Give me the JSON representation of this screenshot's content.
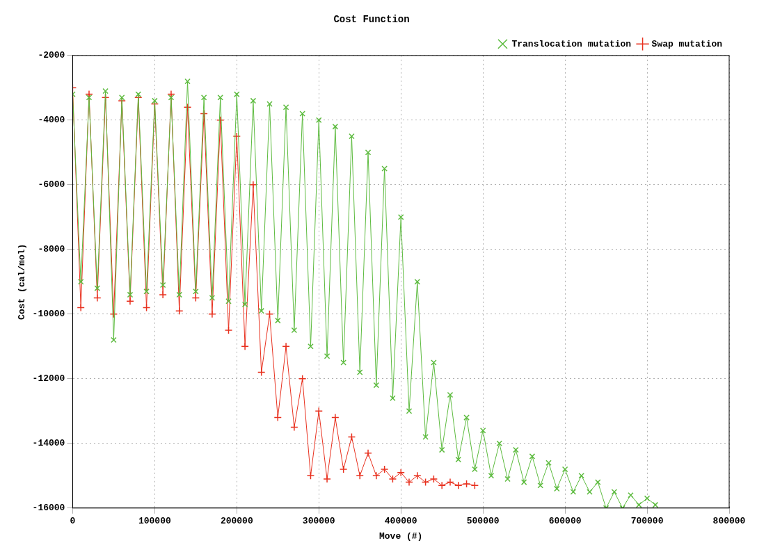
{
  "chart_data": {
    "type": "line",
    "title": "Cost Function",
    "x_label": "Move (#)",
    "y_label": "Cost (cal/mol)",
    "xlim": [
      0,
      800000
    ],
    "xticks": [
      0,
      100000,
      200000,
      300000,
      400000,
      500000,
      600000,
      700000,
      800000
    ],
    "ylim": [
      -16000,
      -2000
    ],
    "yticks": [
      -16000,
      -14000,
      -12000,
      -10000,
      -8000,
      -6000,
      -4000,
      -2000
    ],
    "grid": true,
    "legend": "top-right",
    "series": [
      {
        "name": "Swap mutation",
        "color": "#e8311f",
        "marker": "plus",
        "line_style": "solid",
        "x": [
          0,
          10000,
          20000,
          30000,
          40000,
          50000,
          60000,
          70000,
          80000,
          90000,
          100000,
          110000,
          120000,
          130000,
          140000,
          150000,
          160000,
          170000,
          180000,
          190000,
          200000,
          210000,
          220000,
          230000,
          240000,
          250000,
          260000,
          270000,
          280000,
          290000,
          300000,
          310000,
          320000,
          330000,
          340000,
          350000,
          360000,
          370000,
          380000,
          390000,
          400000,
          410000,
          420000,
          430000,
          440000,
          450000,
          460000,
          470000,
          480000,
          490000
        ],
        "values": [
          -3000,
          -9800,
          -3200,
          -9500,
          -3300,
          -10000,
          -3400,
          -9600,
          -3300,
          -9800,
          -3500,
          -9400,
          -3200,
          -9900,
          -3600,
          -9500,
          -3800,
          -10000,
          -4000,
          -10500,
          -4500,
          -11000,
          -6000,
          -11800,
          -10000,
          -13200,
          -11000,
          -13500,
          -12000,
          -15000,
          -13000,
          -15100,
          -13200,
          -14800,
          -13800,
          -15000,
          -14300,
          -15000,
          -14800,
          -15100,
          -14900,
          -15200,
          -15000,
          -15200,
          -15100,
          -15300,
          -15200,
          -15300,
          -15250,
          -15300
        ]
      },
      {
        "name": "Translocation mutation",
        "color": "#5dbb3f",
        "marker": "x",
        "line_style": "solid",
        "x": [
          0,
          10000,
          20000,
          30000,
          40000,
          50000,
          60000,
          70000,
          80000,
          90000,
          100000,
          110000,
          120000,
          130000,
          140000,
          150000,
          160000,
          170000,
          180000,
          190000,
          200000,
          210000,
          220000,
          230000,
          240000,
          250000,
          260000,
          270000,
          280000,
          290000,
          300000,
          310000,
          320000,
          330000,
          340000,
          350000,
          360000,
          370000,
          380000,
          390000,
          400000,
          410000,
          420000,
          430000,
          440000,
          450000,
          460000,
          470000,
          480000,
          490000,
          500000,
          510000,
          520000,
          530000,
          540000,
          550000,
          560000,
          570000,
          580000,
          590000,
          600000,
          610000,
          620000,
          630000,
          640000,
          650000,
          660000,
          670000,
          680000,
          690000,
          700000,
          710000
        ],
        "values": [
          -3200,
          -9000,
          -3300,
          -9200,
          -3100,
          -10800,
          -3300,
          -9400,
          -3200,
          -9300,
          -3400,
          -9100,
          -3300,
          -9400,
          -2800,
          -9300,
          -3300,
          -9500,
          -3300,
          -9600,
          -3200,
          -9700,
          -3400,
          -9900,
          -3500,
          -10200,
          -3600,
          -10500,
          -3800,
          -11000,
          -4000,
          -11300,
          -4200,
          -11500,
          -4500,
          -11800,
          -5000,
          -12200,
          -5500,
          -12600,
          -7000,
          -13000,
          -9000,
          -13800,
          -11500,
          -14200,
          -12500,
          -14500,
          -13200,
          -14800,
          -13600,
          -15000,
          -14000,
          -15100,
          -14200,
          -15200,
          -14400,
          -15300,
          -14600,
          -15400,
          -14800,
          -15500,
          -15000,
          -15500,
          -15200,
          -16000,
          -15500,
          -16000,
          -15600,
          -15900,
          -15700,
          -15900
        ]
      }
    ]
  }
}
